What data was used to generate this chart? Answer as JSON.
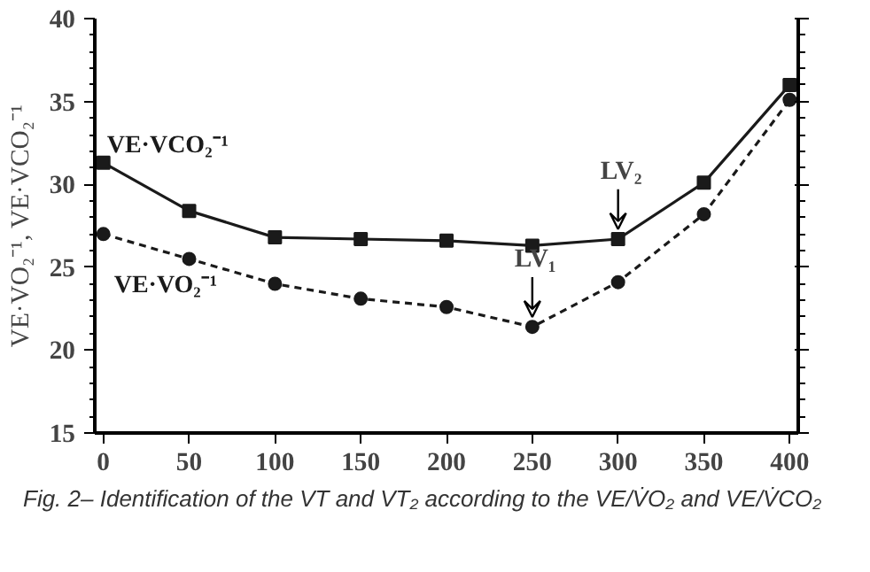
{
  "chart_data": {
    "type": "line",
    "x": [
      0,
      50,
      100,
      150,
      200,
      250,
      300,
      350,
      400
    ],
    "ylabel": "VE·VO₂⁻¹, VE·VCO₂⁻¹",
    "series": [
      {
        "name": "VE·VCO₂⁻¹",
        "color": "#1a1a1a",
        "line_style": "solid",
        "marker": "square",
        "values": [
          31.3,
          28.4,
          26.8,
          26.7,
          26.6,
          26.3,
          26.7,
          30.1,
          36.0
        ]
      },
      {
        "name": "VE·VO₂⁻¹",
        "color": "#1a1a1a",
        "line_style": "dashed",
        "marker": "circle",
        "values": [
          27.0,
          25.5,
          24.0,
          23.1,
          22.6,
          21.4,
          24.1,
          28.2,
          35.1
        ]
      }
    ],
    "xlim": [
      -5,
      405
    ],
    "xticks": [
      0,
      50,
      100,
      150,
      200,
      250,
      300,
      350,
      400
    ],
    "ylim": [
      15,
      40
    ],
    "yticks": [
      15,
      20,
      25,
      30,
      35,
      40
    ],
    "grid": false,
    "legend": false,
    "annotations": [
      {
        "text": "LV₁",
        "x": 250,
        "y": 21.4
      },
      {
        "text": "LV₂",
        "x": 300,
        "y": 26.7
      },
      "Fig. 2– Identification of the VT and VT₂ according to the VE/V̇O₂ and VE/V̇CO₂"
    ]
  }
}
